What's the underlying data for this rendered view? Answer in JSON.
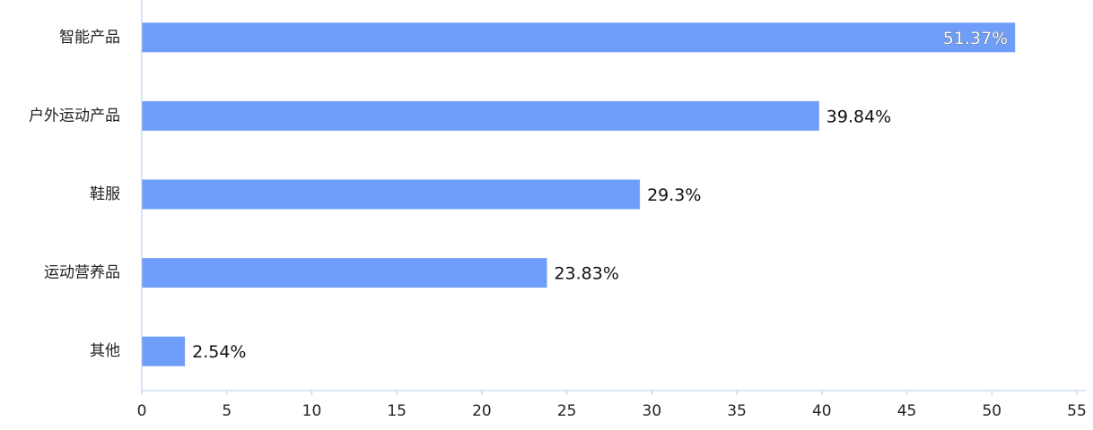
{
  "chart_data": {
    "type": "bar",
    "orientation": "horizontal",
    "categories": [
      "智能产品",
      "户外运动产品",
      "鞋服",
      "运动营养品",
      "其他"
    ],
    "values": [
      51.37,
      39.84,
      29.3,
      23.83,
      2.54
    ],
    "data_labels": [
      "51.37%",
      "39.84%",
      "29.3%",
      "23.83%",
      "2.54%"
    ],
    "xlim": [
      0,
      55
    ],
    "xticks": [
      0,
      5,
      10,
      15,
      20,
      25,
      30,
      35,
      40,
      45,
      50,
      55
    ],
    "title": "",
    "xlabel": "",
    "ylabel": "",
    "grid": false,
    "legend": "none",
    "colors": {
      "bar": "#6f9efa",
      "axis": "#b8c8ee",
      "text": "#222222"
    }
  }
}
